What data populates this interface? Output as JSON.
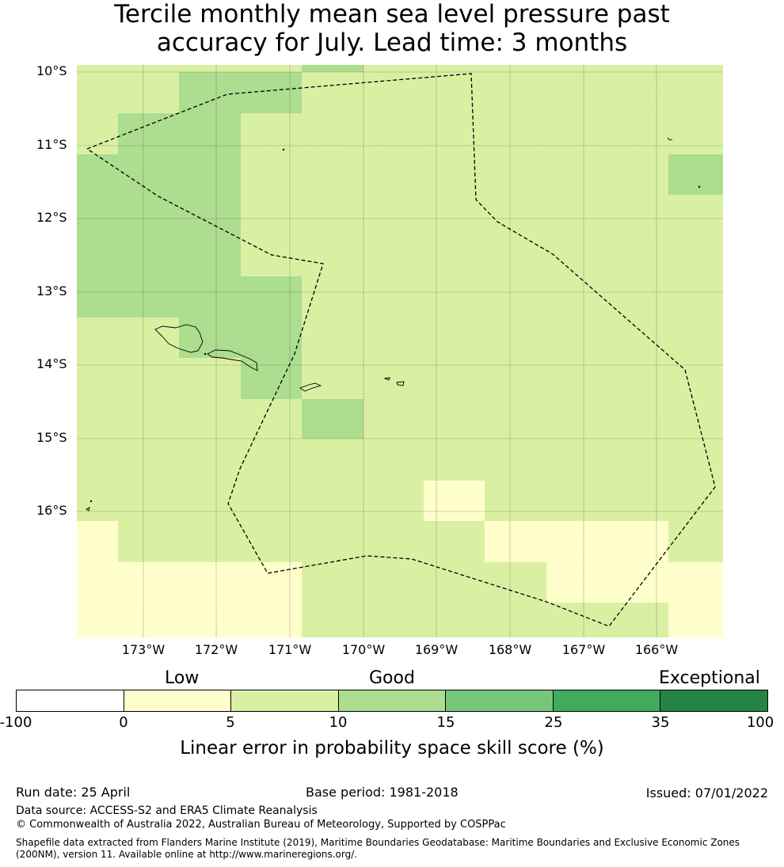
{
  "title": {
    "line1": "Tercile monthly mean sea level pressure past",
    "line2": "accuracy for July. Lead time: 3 months"
  },
  "map": {
    "lat_labels": [
      "10°S",
      "11°S",
      "12°S",
      "13°S",
      "14°S",
      "15°S",
      "16°S"
    ],
    "lon_labels": [
      "173°W",
      "172°W",
      "171°W",
      "170°W",
      "169°W",
      "168°W",
      "167°W",
      "166°W"
    ],
    "category_colors": {
      "0-5": "#ffffcc",
      "5-10": "#d9f0a3",
      "10-15": "#addd8e",
      "15-25": "#78c679",
      "25-35": "#41ab5d",
      "35-100": "#238443"
    }
  },
  "colorbar": {
    "headers": [
      "Low",
      "Good",
      "Exceptional"
    ],
    "ticks": [
      "-100",
      "0",
      "5",
      "10",
      "15",
      "25",
      "35",
      "100"
    ],
    "colors": [
      "#ffffff",
      "#ffffcc",
      "#d9f0a3",
      "#addd8e",
      "#78c679",
      "#41ab5d",
      "#238443"
    ],
    "title": "Linear error in probability space skill score (%)"
  },
  "footer": {
    "run_date": "Run date: 25 April",
    "base_period": "Base period: 1981-2018",
    "issued": "Issued: 07/01/2022",
    "data_source": "Data source: ACCESS-S2 and ERA5 Climate Reanalysis",
    "copyright": "© Commonwealth of Australia 2022, Australian Bureau of Meteorology, Supported by COSPPac",
    "shapefile": "Shapefile data extracted from Flanders Marine Institute (2019), Maritime Boundaries Geodatabase: Maritime Boundaries and Exclusive Economic Zones (200NM), version 11. Available online at http://www.marineregions.org/."
  }
}
